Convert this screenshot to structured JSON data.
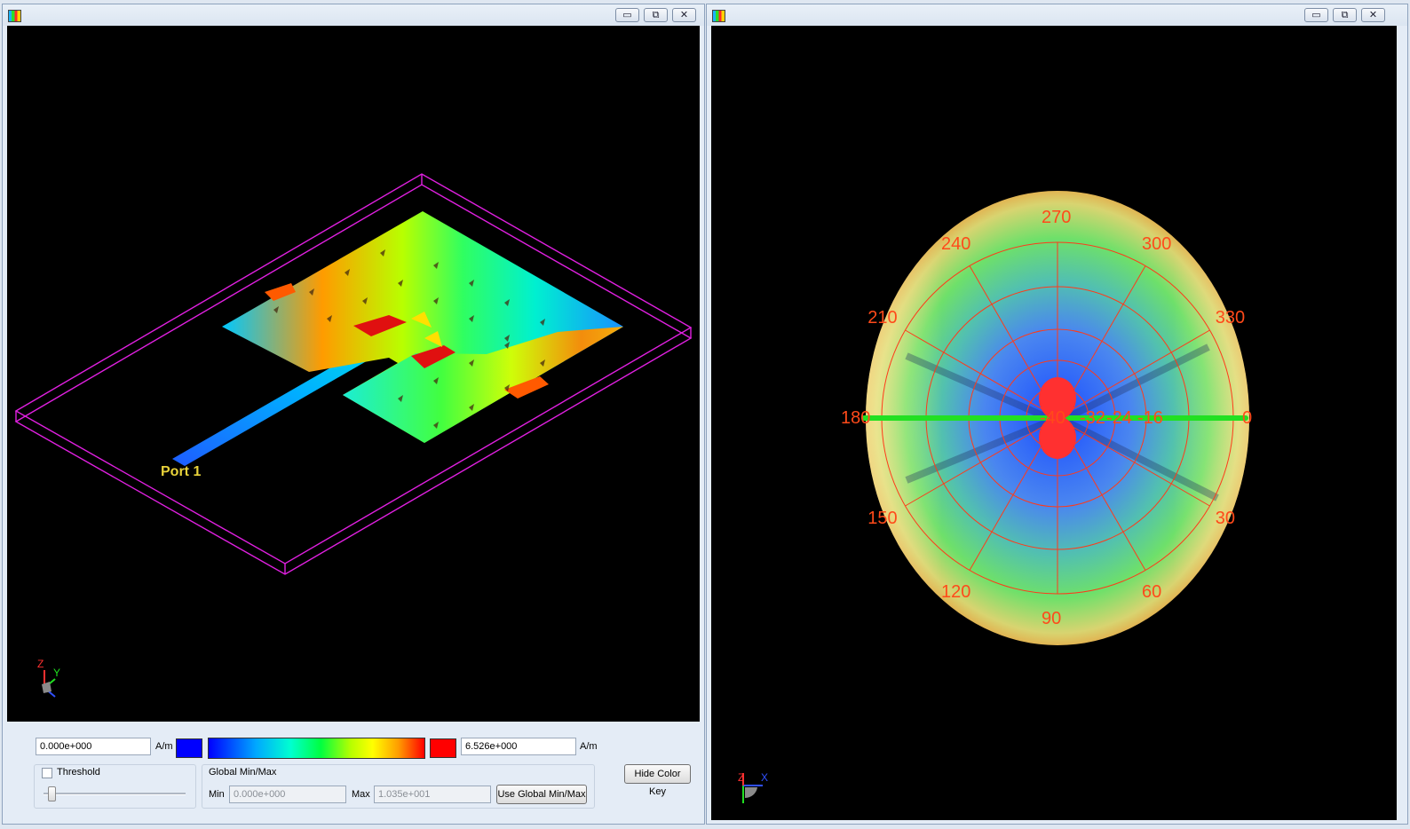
{
  "left_window": {
    "buttons": {
      "minimize": "▭",
      "restore": "⧉",
      "close": "✕"
    },
    "viewport": {
      "port_label": "Port 1",
      "axes": {
        "z": "Z",
        "y": "Y"
      }
    },
    "color_key": {
      "min_value": "0.000e+000",
      "min_unit": "A/m",
      "max_value": "6.526e+000",
      "max_unit": "A/m",
      "min_color": "#0000ff",
      "max_color": "#ff0000",
      "threshold_label": "Threshold",
      "global_group_title": "Global Min/Max",
      "global_min_label": "Min",
      "global_min_value": "0.000e+000",
      "global_max_label": "Max",
      "global_max_value": "1.035e+001",
      "use_global_button": "Use Global Min/Max",
      "hide_key_button": "Hide Color Key"
    }
  },
  "right_window": {
    "buttons": {
      "minimize": "▭",
      "restore": "⧉",
      "close": "✕"
    },
    "axes": {
      "z": "Z",
      "x": "X"
    },
    "polar_angles": [
      "270",
      "300",
      "330",
      "0",
      "30",
      "60",
      "90",
      "120",
      "150",
      "180",
      "210",
      "240"
    ],
    "radial_labels": [
      "-32",
      "-24",
      "-16"
    ],
    "radial_extra_label": "-40",
    "grid_color": "#ff3a1a"
  }
}
